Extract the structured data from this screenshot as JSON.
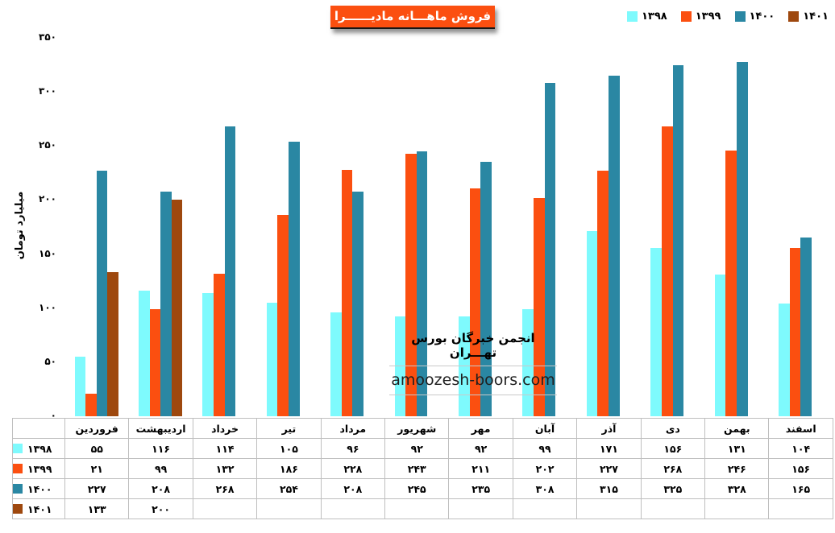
{
  "chart_data": {
    "type": "bar",
    "title": "فروش ماهـــانه مادیــــــرا",
    "ylabel": "میلیارد تومان",
    "ylim": [
      0,
      350
    ],
    "ytick_step": 50,
    "grid": false,
    "legend_position": "top-right",
    "digit_style": "persian",
    "categories": [
      "فروردین",
      "اردیبهشت",
      "خرداد",
      "تیر",
      "مرداد",
      "شهریور",
      "مهر",
      "آبان",
      "آذر",
      "دی",
      "بهمن",
      "اسفند"
    ],
    "series": [
      {
        "name": "۱۳۹۸",
        "color": "#7EFAFD",
        "values": [
          55,
          116,
          114,
          105,
          96,
          92,
          92,
          99,
          171,
          156,
          131,
          104
        ]
      },
      {
        "name": "۱۳۹۹",
        "color": "#FB4F10",
        "values": [
          21,
          99,
          132,
          186,
          228,
          243,
          211,
          202,
          227,
          268,
          246,
          156
        ]
      },
      {
        "name": "۱۴۰۰",
        "color": "#2A87A3",
        "values": [
          227,
          208,
          268,
          254,
          208,
          245,
          235,
          308,
          315,
          325,
          328,
          165
        ]
      },
      {
        "name": "۱۴۰۱",
        "color": "#9E480E",
        "values": [
          133,
          200,
          null,
          null,
          null,
          null,
          null,
          null,
          null,
          null,
          null,
          null
        ]
      }
    ]
  },
  "title_box_color": "#FB4F10",
  "watermark": {
    "line1": "انجمن خبرگان بورس تهـــران",
    "line2": "amoozesh-boors.com"
  }
}
